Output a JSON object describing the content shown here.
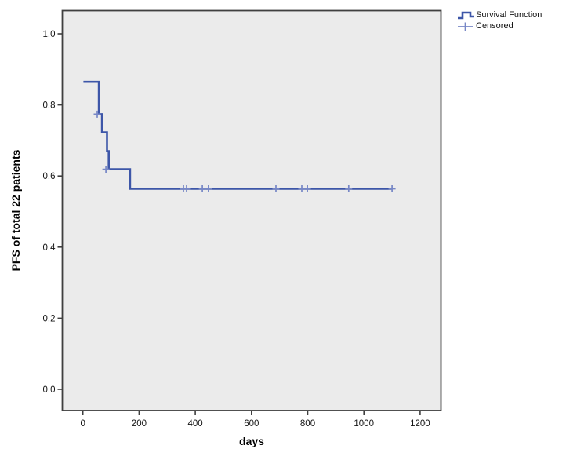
{
  "chart_data": {
    "type": "line",
    "subtype": "kaplan-meier-step",
    "title": "",
    "xlabel": "days",
    "ylabel": "PFS of total 22 patients",
    "x_ticks": [
      0,
      200,
      400,
      600,
      800,
      1000,
      1200
    ],
    "y_ticks": [
      1.0,
      0.8,
      0.6,
      0.4,
      0.2,
      0.0
    ],
    "xlim": [
      -72,
      1275
    ],
    "ylim": [
      -0.06,
      1.07
    ],
    "grid": false,
    "legend_position": "top-right-outside",
    "series": [
      {
        "name": "Survival Function",
        "points": [
          [
            2,
            0.865
          ],
          [
            57,
            0.865
          ],
          [
            57,
            0.774
          ],
          [
            68,
            0.774
          ],
          [
            68,
            0.723
          ],
          [
            86,
            0.723
          ],
          [
            86,
            0.67
          ],
          [
            92,
            0.67
          ],
          [
            92,
            0.619
          ],
          [
            168,
            0.619
          ],
          [
            168,
            0.564
          ],
          [
            1100,
            0.564
          ]
        ]
      }
    ],
    "censored": {
      "name": "Censored",
      "points": [
        [
          51,
          0.774
        ],
        [
          82,
          0.619
        ],
        [
          358,
          0.564
        ],
        [
          369,
          0.564
        ],
        [
          425,
          0.564
        ],
        [
          447,
          0.564
        ],
        [
          687,
          0.564
        ],
        [
          779,
          0.564
        ],
        [
          799,
          0.564
        ],
        [
          946,
          0.564
        ],
        [
          1100,
          0.564
        ]
      ]
    },
    "colors": {
      "line": "#3d56a8",
      "censored": "#7787c6",
      "plot_bg": "#ebebeb",
      "axis": "#3f3f3f",
      "text": "#141414"
    }
  },
  "legend": {
    "survival_label": "Survival Function",
    "censored_label": "Censored"
  },
  "axes": {
    "x_label": "days",
    "y_label": "PFS of total 22 patients"
  }
}
